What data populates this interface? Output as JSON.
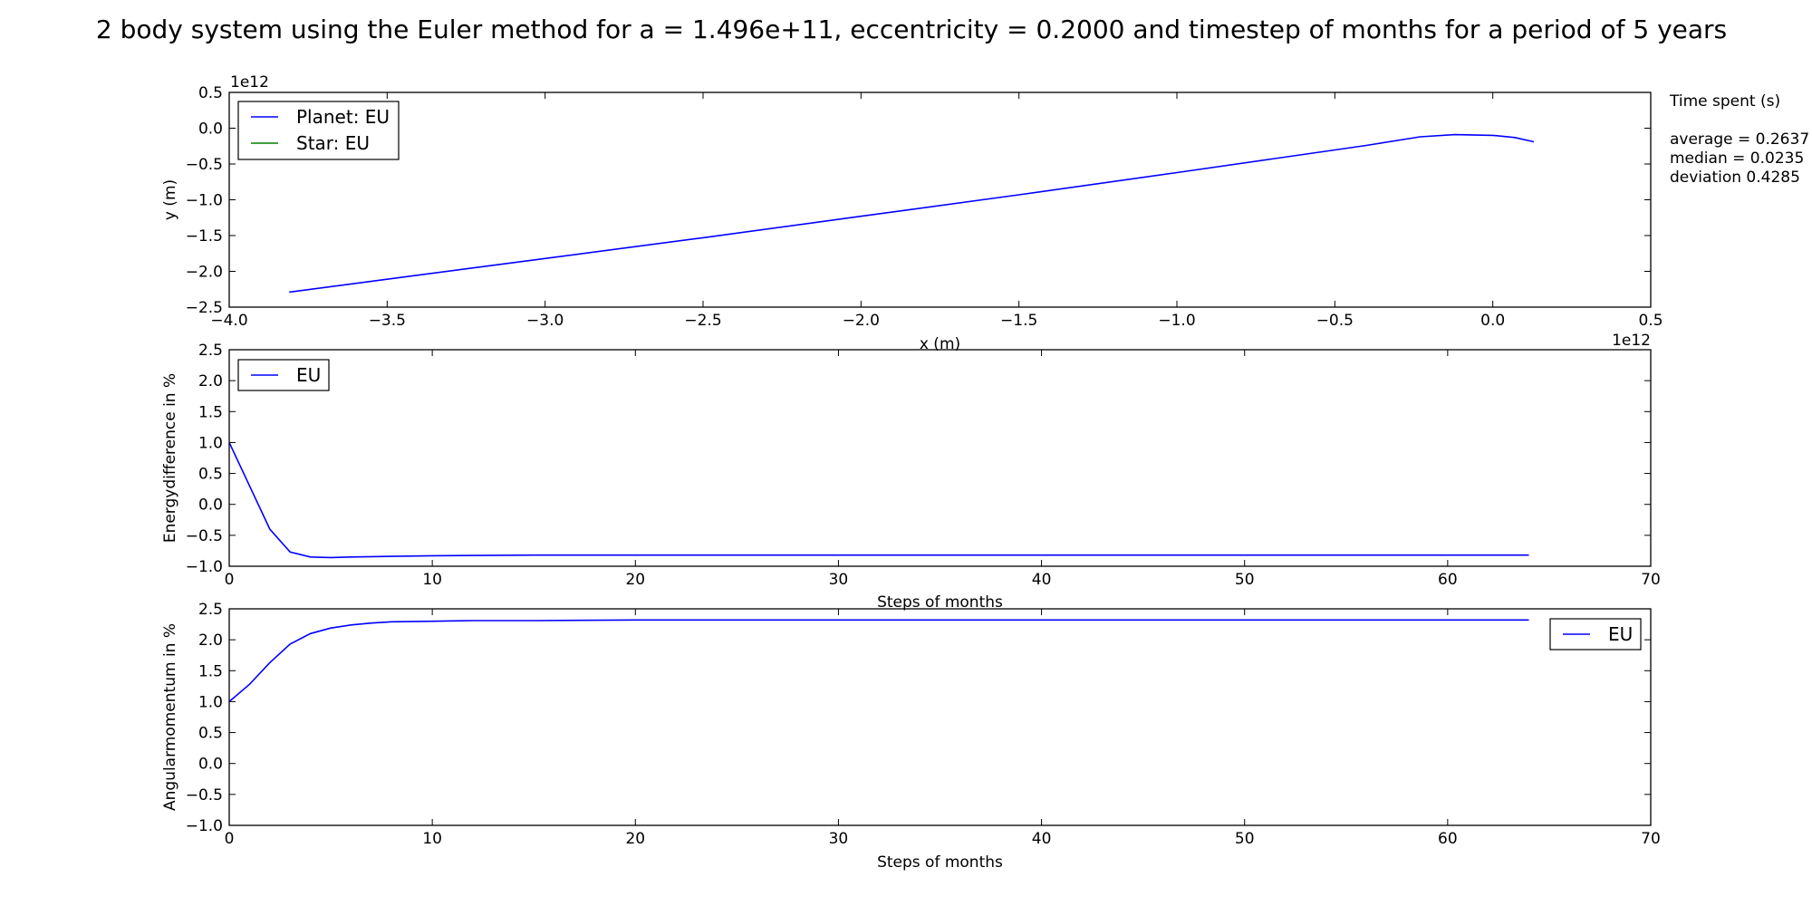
{
  "title": "2 body system using the Euler method for a = 1.496e+11, eccentricity = 0.2000 and timestep of months for a period of 5 years",
  "side_panel": {
    "heading": "Time spent (s)",
    "lines": [
      "average = 0.2637",
      "median = 0.0235",
      "deviation 0.4285"
    ]
  },
  "colors": {
    "planet": "#0000ff",
    "star": "#008000",
    "eu": "#0000ff"
  },
  "chart_data": [
    {
      "type": "line",
      "xlabel": "x (m)",
      "ylabel": "y (m)",
      "x_offset_text": "1e12",
      "y_offset_text": "1e12",
      "xlim": [
        -4.0,
        0.5
      ],
      "ylim": [
        -2.5,
        0.5
      ],
      "xticks": [
        -4.0,
        -3.5,
        -3.0,
        -2.5,
        -2.0,
        -1.5,
        -1.0,
        -0.5,
        0.0,
        0.5
      ],
      "xtick_labels": [
        "−4.0",
        "−3.5",
        "−3.0",
        "−2.5",
        "−2.0",
        "−1.5",
        "−1.0",
        "−0.5",
        "0.0",
        "0.5"
      ],
      "yticks": [
        0.5,
        0.0,
        -0.5,
        -1.0,
        -1.5,
        -2.0,
        -2.5
      ],
      "ytick_labels": [
        "0.5",
        "0.0",
        "−0.5",
        "−1.0",
        "−1.5",
        "−2.0",
        "−2.5"
      ],
      "legend": {
        "location": "upper left"
      },
      "series": [
        {
          "name": "Planet: EU",
          "color": "#0000ff",
          "x": [
            -3.81,
            -3.5,
            -3.0,
            -2.5,
            -2.0,
            -1.5,
            -1.0,
            -0.7,
            -0.4,
            -0.23,
            -0.12,
            0.0,
            0.07,
            0.13
          ],
          "y": [
            -2.29,
            -2.11,
            -1.82,
            -1.53,
            -1.23,
            -0.93,
            -0.62,
            -0.43,
            -0.24,
            -0.12,
            -0.09,
            -0.1,
            -0.13,
            -0.19
          ]
        },
        {
          "name": "Star: EU",
          "color": "#008000",
          "x": [
            0.0,
            0.0
          ],
          "y": [
            0.0,
            0.0
          ]
        }
      ]
    },
    {
      "type": "line",
      "xlabel": "Steps of months",
      "ylabel": "Energydifference in %",
      "xlim": [
        0,
        70
      ],
      "ylim": [
        -1.0,
        2.5
      ],
      "xticks": [
        0,
        10,
        20,
        30,
        40,
        50,
        60,
        70
      ],
      "xtick_labels": [
        "0",
        "10",
        "20",
        "30",
        "40",
        "50",
        "60",
        "70"
      ],
      "yticks": [
        2.5,
        2.0,
        1.5,
        1.0,
        0.5,
        0.0,
        -0.5,
        -1.0
      ],
      "ytick_labels": [
        "2.5",
        "2.0",
        "1.5",
        "1.0",
        "0.5",
        "0.0",
        "−0.5",
        "−1.0"
      ],
      "legend": {
        "location": "upper left"
      },
      "series": [
        {
          "name": "EU",
          "color": "#0000ff",
          "x": [
            0,
            1,
            2,
            3,
            4,
            5,
            6,
            8,
            10,
            15,
            20,
            30,
            40,
            50,
            64
          ],
          "y": [
            1.0,
            0.3,
            -0.4,
            -0.77,
            -0.85,
            -0.86,
            -0.85,
            -0.84,
            -0.83,
            -0.82,
            -0.82,
            -0.82,
            -0.82,
            -0.82,
            -0.82
          ]
        }
      ]
    },
    {
      "type": "line",
      "xlabel": "Steps of months",
      "ylabel": "Angularmomentum in  %",
      "xlim": [
        0,
        70
      ],
      "ylim": [
        -1.0,
        2.5
      ],
      "xticks": [
        0,
        10,
        20,
        30,
        40,
        50,
        60,
        70
      ],
      "xtick_labels": [
        "0",
        "10",
        "20",
        "30",
        "40",
        "50",
        "60",
        "70"
      ],
      "yticks": [
        2.5,
        2.0,
        1.5,
        1.0,
        0.5,
        0.0,
        -0.5,
        -1.0
      ],
      "ytick_labels": [
        "2.5",
        "2.0",
        "1.5",
        "1.0",
        "0.5",
        "0.0",
        "−0.5",
        "−1.0"
      ],
      "legend": {
        "location": "upper right"
      },
      "series": [
        {
          "name": "EU",
          "color": "#0000ff",
          "x": [
            0,
            1,
            2,
            3,
            4,
            5,
            6,
            7,
            8,
            10,
            12,
            15,
            20,
            30,
            40,
            50,
            64
          ],
          "y": [
            1.0,
            1.28,
            1.63,
            1.93,
            2.1,
            2.19,
            2.24,
            2.27,
            2.29,
            2.3,
            2.31,
            2.31,
            2.32,
            2.32,
            2.32,
            2.32,
            2.32
          ]
        }
      ]
    }
  ]
}
